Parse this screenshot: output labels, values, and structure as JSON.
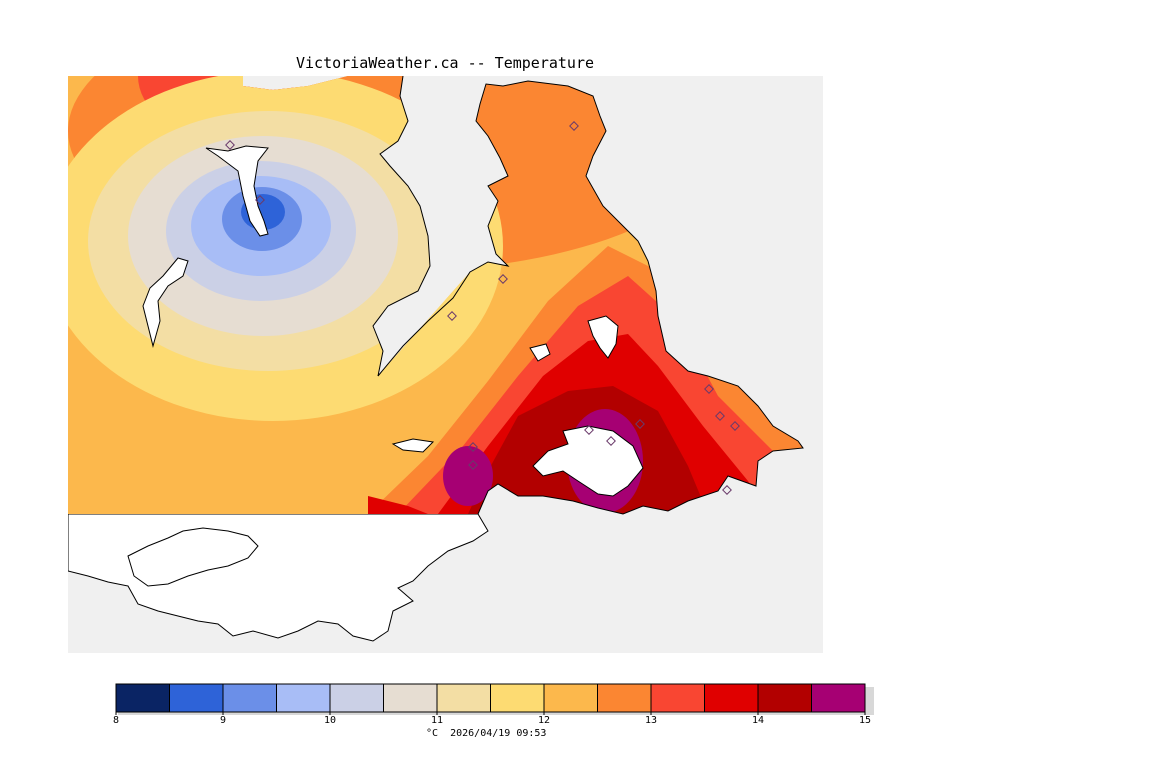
{
  "title": "VictoriaWeather.ca -- Temperature",
  "legend": {
    "ticks": [
      "8",
      "9",
      "10",
      "11",
      "12",
      "13",
      "14",
      "15"
    ],
    "colors": [
      "#0a2464",
      "#2e63d8",
      "#6b8fe8",
      "#a8bdf6",
      "#cbd0e6",
      "#e6ddd2",
      "#f3dea4",
      "#fddb72",
      "#fcb84c",
      "#fb8632",
      "#f94632",
      "#e00000",
      "#b20000",
      "#a60073"
    ],
    "unit": "°C",
    "timestamp": "2026/04/19 09:53"
  }
}
